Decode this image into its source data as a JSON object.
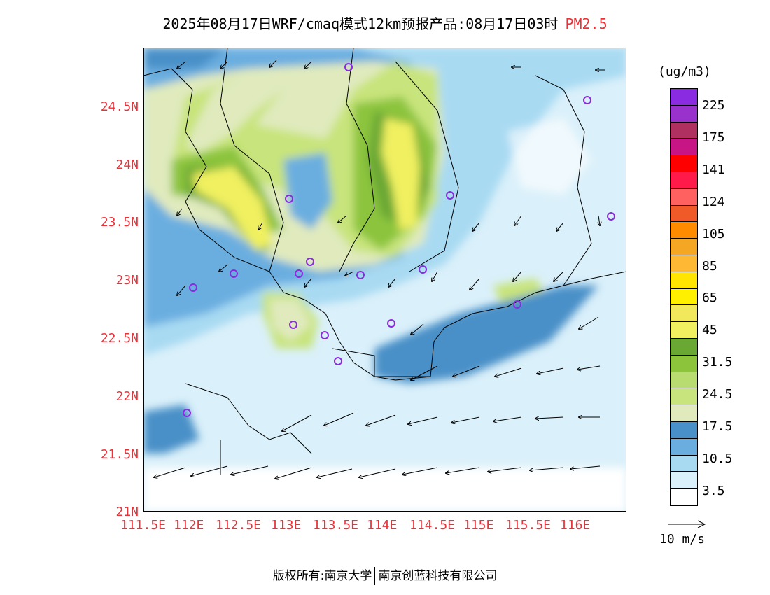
{
  "header": {
    "title": "2025年08月17日WRF/cmaq模式12km预报产品:08月17日03时",
    "pollutant": "PM2.5"
  },
  "axes": {
    "lat_labels": [
      "24.5N",
      "24N",
      "23.5N",
      "23N",
      "22.5N",
      "22N",
      "21.5N",
      "21N"
    ],
    "lon_labels": [
      "111.5E",
      "112E",
      "112.5E",
      "113E",
      "113.5E",
      "114E",
      "114.5E",
      "115E",
      "115.5E",
      "116E"
    ]
  },
  "legend": {
    "unit": "(ug/m3)",
    "labels": [
      "225",
      "175",
      "141",
      "124",
      "105",
      "85",
      "65",
      "45",
      "31.5",
      "24.5",
      "17.5",
      "10.5",
      "3.5"
    ],
    "colors": [
      "#8a2be2",
      "#9932cc",
      "#b03060",
      "#c71585",
      "#ff0000",
      "#ff1a4a",
      "#ff6060",
      "#f05a28",
      "#ff8c00",
      "#f5a623",
      "#ffb833",
      "#ffe500",
      "#fff000",
      "#f2e85c",
      "#f0f060",
      "#6aa834",
      "#8cc43c",
      "#b8dc70",
      "#c8e47c",
      "#e0eabd",
      "#4a90c8",
      "#6aaee0",
      "#a8daf2",
      "#daf0fa",
      "#ffffff"
    ]
  },
  "wind_vector": {
    "label": "10 m/s"
  },
  "footer": {
    "left": "版权所有:南京大学",
    "right": "南京创蓝科技有限公司"
  }
}
